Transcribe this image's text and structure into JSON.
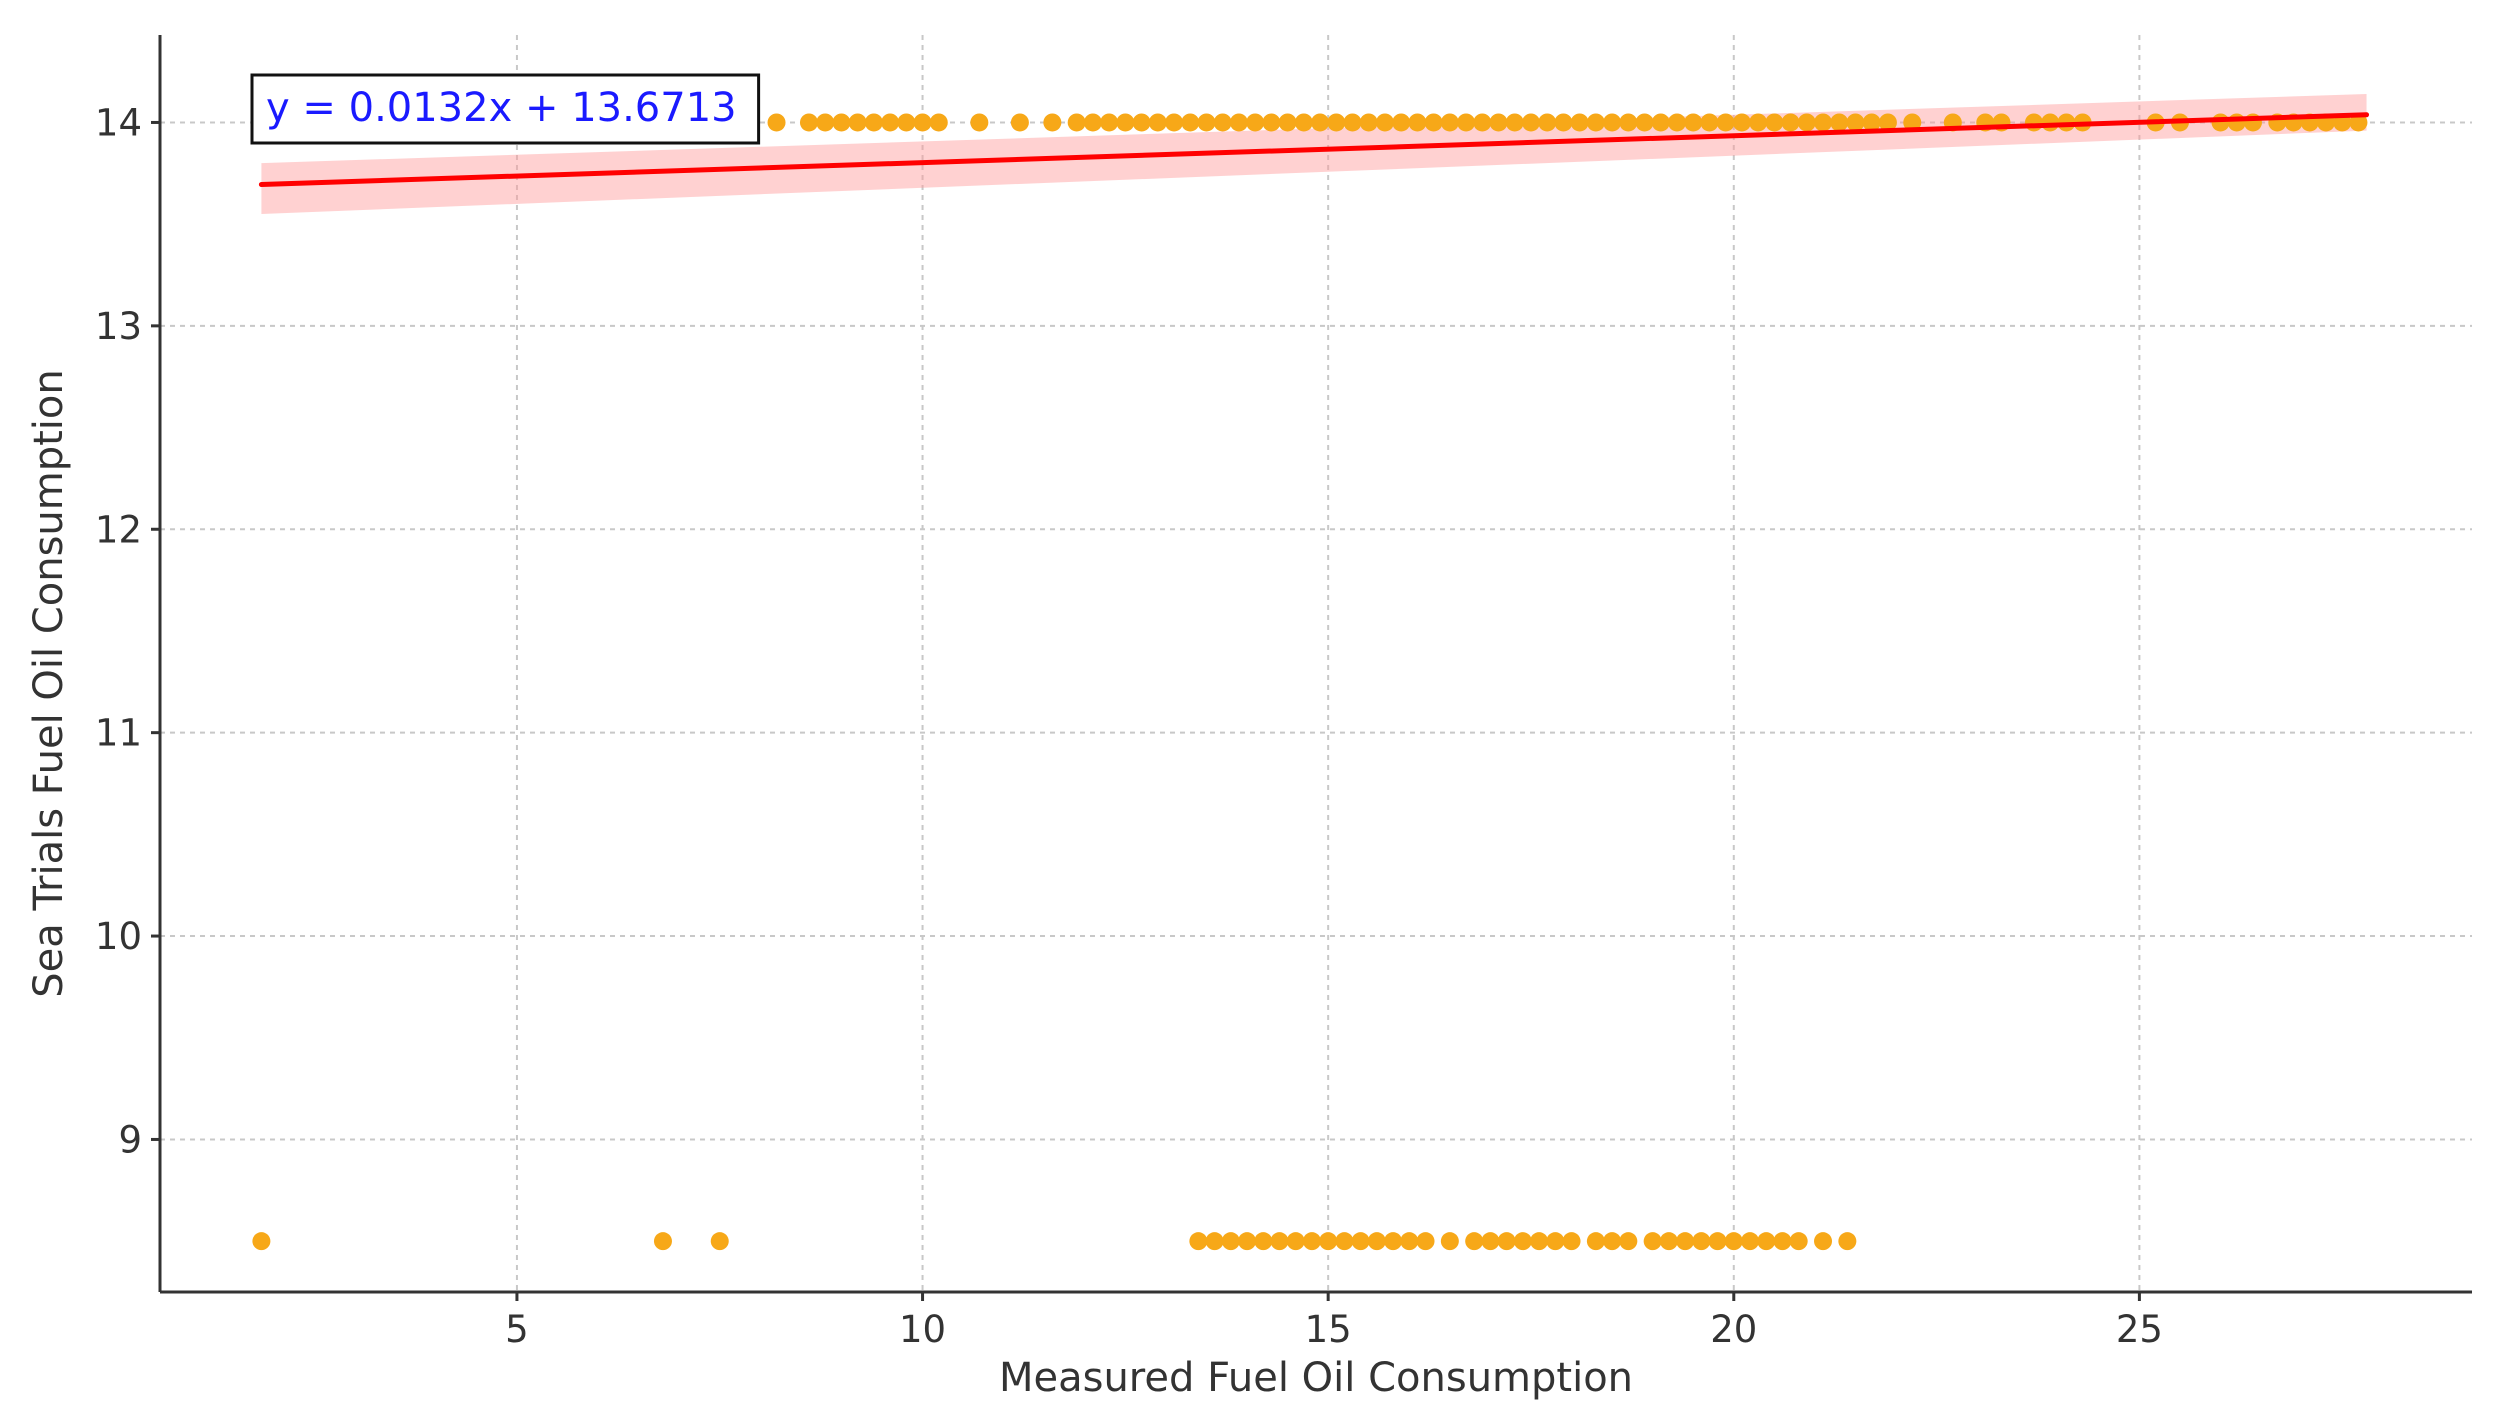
{
  "chart_data": {
    "type": "scatter",
    "xlabel": "Measured Fuel Oil Consumption",
    "ylabel": "Sea Trials Fuel Oil Consumption",
    "annotation": "y = 0.0132x + 13.6713",
    "xlim": [
      0.6,
      29.1
    ],
    "ylim": [
      8.25,
      14.43
    ],
    "xticks": [
      5,
      10,
      15,
      20,
      25
    ],
    "yticks": [
      9,
      10,
      11,
      12,
      13,
      14
    ],
    "grid": true,
    "colors": {
      "points": "#f7a818",
      "regression": "#ff0000",
      "confidence_band": "#ff9999",
      "annotation_text": "#1a1aff"
    },
    "series": [
      {
        "kind": "points",
        "x": [
          1.85,
          8.2,
          8.6,
          8.8,
          9.0,
          9.2,
          9.4,
          9.6,
          9.8,
          10.0,
          10.2,
          10.7,
          11.2,
          11.6,
          11.9,
          12.1,
          12.3,
          12.5,
          12.7,
          12.9,
          13.1,
          13.3,
          13.5,
          13.7,
          13.9,
          14.1,
          14.3,
          14.5,
          14.7,
          14.9,
          15.1,
          15.3,
          15.5,
          15.7,
          15.9,
          16.1,
          16.3,
          16.5,
          16.7,
          16.9,
          17.1,
          17.3,
          17.5,
          17.7,
          17.9,
          18.1,
          18.3,
          18.5,
          18.7,
          18.9,
          19.1,
          19.3,
          19.5,
          19.7,
          19.9,
          20.1,
          20.3,
          20.5,
          20.7,
          20.9,
          21.1,
          21.3,
          21.5,
          21.7,
          21.9,
          22.2,
          22.7,
          23.1,
          23.3,
          23.7,
          23.9,
          24.1,
          24.3,
          25.2,
          25.5,
          26.0,
          26.2,
          26.4,
          26.7,
          26.9,
          27.1,
          27.3,
          27.5,
          27.7,
          6.8,
          7.5,
          13.4,
          13.6,
          13.8,
          14.0,
          14.2,
          14.4,
          14.6,
          14.8,
          15.0,
          15.2,
          15.4,
          15.6,
          15.8,
          16.0,
          16.2,
          16.5,
          16.8,
          17.0,
          17.2,
          17.4,
          17.6,
          17.8,
          18.0,
          18.3,
          18.5,
          18.7,
          19.0,
          19.2,
          19.4,
          19.6,
          19.8,
          20.0,
          20.2,
          20.4,
          20.6,
          20.8,
          21.1,
          21.4
        ],
        "y": [
          8.5,
          14.0,
          14.0,
          14.0,
          14.0,
          14.0,
          14.0,
          14.0,
          14.0,
          14.0,
          14.0,
          14.0,
          14.0,
          14.0,
          14.0,
          14.0,
          14.0,
          14.0,
          14.0,
          14.0,
          14.0,
          14.0,
          14.0,
          14.0,
          14.0,
          14.0,
          14.0,
          14.0,
          14.0,
          14.0,
          14.0,
          14.0,
          14.0,
          14.0,
          14.0,
          14.0,
          14.0,
          14.0,
          14.0,
          14.0,
          14.0,
          14.0,
          14.0,
          14.0,
          14.0,
          14.0,
          14.0,
          14.0,
          14.0,
          14.0,
          14.0,
          14.0,
          14.0,
          14.0,
          14.0,
          14.0,
          14.0,
          14.0,
          14.0,
          14.0,
          14.0,
          14.0,
          14.0,
          14.0,
          14.0,
          14.0,
          14.0,
          14.0,
          14.0,
          14.0,
          14.0,
          14.0,
          14.0,
          14.0,
          14.0,
          14.0,
          14.0,
          14.0,
          14.0,
          14.0,
          14.0,
          14.0,
          14.0,
          14.0,
          8.5,
          8.5,
          8.5,
          8.5,
          8.5,
          8.5,
          8.5,
          8.5,
          8.5,
          8.5,
          8.5,
          8.5,
          8.5,
          8.5,
          8.5,
          8.5,
          8.5,
          8.5,
          8.5,
          8.5,
          8.5,
          8.5,
          8.5,
          8.5,
          8.5,
          8.5,
          8.5,
          8.5,
          8.5,
          8.5,
          8.5,
          8.5,
          8.5,
          8.5,
          8.5,
          8.5,
          8.5,
          8.5,
          8.5,
          8.5
        ]
      },
      {
        "kind": "regression_line",
        "x": [
          1.85,
          27.8
        ],
        "y": [
          13.695,
          14.038
        ],
        "band_lower": [
          13.55,
          13.96
        ],
        "band_upper": [
          13.8,
          14.14
        ]
      }
    ]
  }
}
